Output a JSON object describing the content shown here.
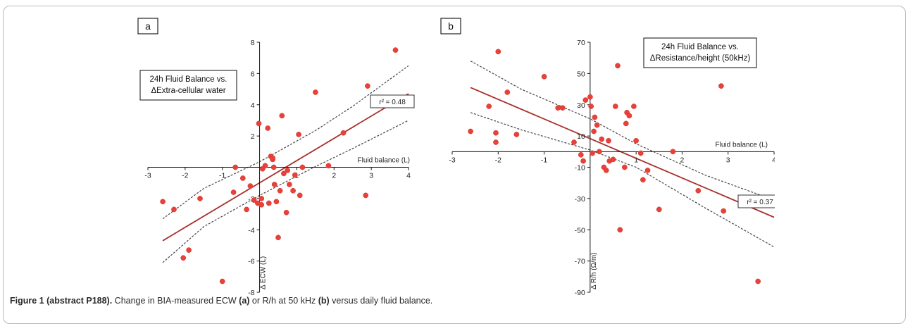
{
  "caption": {
    "lead": "Figure 1 (abstract P188).",
    "text1": " Change in BIA-measured ECW ",
    "tag_a": "(a)",
    "text2": " or R/h at 50 kHz ",
    "tag_b": "(b)",
    "text3": " versus daily fluid balance."
  },
  "chart_data": [
    {
      "type": "scatter",
      "panel_label": "a",
      "title_lines": [
        "24h Fluid Balance vs.",
        "ΔExtra-cellular water"
      ],
      "xlabel": "Fluid balance (L)",
      "ylabel": "Δ ECW (L)",
      "xlim": [
        -3,
        4
      ],
      "ylim": [
        -8,
        8
      ],
      "xticks": [
        -3,
        -2,
        -1,
        0,
        1,
        2,
        3,
        4
      ],
      "yticks": [
        -8,
        -6,
        -4,
        -2,
        0,
        2,
        4,
        6,
        8
      ],
      "r2_label": "r² = 0.48",
      "point_color": "#e8413a",
      "line_color": "#a8302c",
      "points": [
        [
          -2.6,
          -2.2
        ],
        [
          -2.3,
          -2.7
        ],
        [
          -2.05,
          -5.8
        ],
        [
          -1.9,
          -5.3
        ],
        [
          -1.6,
          -2.0
        ],
        [
          -1.0,
          -7.3
        ],
        [
          -0.7,
          -1.6
        ],
        [
          -0.45,
          -0.7
        ],
        [
          -0.35,
          -2.7
        ],
        [
          -0.25,
          -1.2
        ],
        [
          -0.15,
          -2.1
        ],
        [
          -0.05,
          -2.3
        ],
        [
          0.05,
          -2.0
        ],
        [
          0.05,
          -2.4
        ],
        [
          0.08,
          -0.1
        ],
        [
          0.15,
          0.1
        ],
        [
          0.22,
          2.5
        ],
        [
          0.25,
          -2.3
        ],
        [
          0.3,
          0.7
        ],
        [
          0.35,
          0.5
        ],
        [
          0.38,
          0.0
        ],
        [
          0.4,
          -1.1
        ],
        [
          0.45,
          -2.2
        ],
        [
          0.5,
          -4.5
        ],
        [
          0.55,
          -1.5
        ],
        [
          0.6,
          3.3
        ],
        [
          0.65,
          -0.4
        ],
        [
          0.72,
          -2.9
        ],
        [
          0.75,
          -0.2
        ],
        [
          0.8,
          -1.1
        ],
        [
          0.9,
          -1.5
        ],
        [
          0.95,
          -0.5
        ],
        [
          1.05,
          2.1
        ],
        [
          1.08,
          -1.8
        ],
        [
          1.15,
          0.0
        ],
        [
          1.5,
          4.8
        ],
        [
          1.85,
          0.1
        ],
        [
          2.25,
          2.2
        ],
        [
          2.85,
          -1.8
        ],
        [
          2.9,
          5.2
        ],
        [
          3.65,
          7.5
        ],
        [
          -0.65,
          0.0
        ],
        [
          -0.02,
          2.8
        ],
        [
          0.35,
          0.6
        ]
      ],
      "fit": [
        [
          -2.6,
          -4.7
        ],
        [
          4.0,
          4.7
        ]
      ],
      "ci_upper": [
        [
          -2.6,
          -3.3
        ],
        [
          -1.5,
          -1.35
        ],
        [
          0.0,
          0.35
        ],
        [
          1.5,
          2.35
        ],
        [
          2.5,
          3.9
        ],
        [
          4.0,
          6.5
        ]
      ],
      "ci_lower": [
        [
          -2.6,
          -6.1
        ],
        [
          -1.5,
          -3.8
        ],
        [
          0.0,
          -1.8
        ],
        [
          1.5,
          0.05
        ],
        [
          2.5,
          1.2
        ],
        [
          4.0,
          3.0
        ]
      ],
      "grid": false
    },
    {
      "type": "scatter",
      "panel_label": "b",
      "title_lines": [
        "24h Fluid Balance vs.",
        "ΔResistance/height (50kHz)"
      ],
      "xlabel": "Fluid balance (L)",
      "ylabel": "Δ R/h (Ω/m)",
      "xlim": [
        -3,
        4
      ],
      "ylim": [
        -90,
        70
      ],
      "xticks": [
        -3,
        -2,
        -1,
        0,
        1,
        2,
        3,
        4
      ],
      "yticks": [
        -90,
        -70,
        -50,
        -30,
        -10,
        10,
        30,
        50,
        70
      ],
      "r2_label": "r² = 0.37",
      "point_color": "#e8413a",
      "line_color": "#a8302c",
      "points": [
        [
          -2.6,
          13
        ],
        [
          -2.2,
          29
        ],
        [
          -2.05,
          6
        ],
        [
          -2.0,
          64
        ],
        [
          -1.8,
          38
        ],
        [
          -1.6,
          11
        ],
        [
          -1.0,
          48
        ],
        [
          -0.7,
          28
        ],
        [
          -0.35,
          6
        ],
        [
          -0.2,
          -2
        ],
        [
          -0.15,
          -6
        ],
        [
          -0.1,
          33
        ],
        [
          0.0,
          35
        ],
        [
          0.02,
          29
        ],
        [
          0.05,
          -1
        ],
        [
          0.08,
          13
        ],
        [
          0.1,
          22
        ],
        [
          0.15,
          17
        ],
        [
          0.2,
          0
        ],
        [
          0.25,
          8
        ],
        [
          0.3,
          -10
        ],
        [
          0.35,
          -12
        ],
        [
          0.4,
          7
        ],
        [
          0.42,
          -6
        ],
        [
          0.5,
          -5
        ],
        [
          0.55,
          29
        ],
        [
          0.6,
          55
        ],
        [
          0.65,
          -50
        ],
        [
          0.75,
          -10
        ],
        [
          0.78,
          18
        ],
        [
          0.8,
          25
        ],
        [
          0.85,
          23
        ],
        [
          0.95,
          29
        ],
        [
          1.0,
          7
        ],
        [
          1.1,
          -1
        ],
        [
          1.15,
          -18
        ],
        [
          1.25,
          -12
        ],
        [
          1.5,
          -37
        ],
        [
          1.8,
          0
        ],
        [
          2.35,
          -25
        ],
        [
          2.85,
          42
        ],
        [
          2.9,
          -38
        ],
        [
          3.65,
          -83
        ],
        [
          -2.05,
          12
        ],
        [
          -0.6,
          28
        ]
      ],
      "fit": [
        [
          -2.6,
          41
        ],
        [
          4.0,
          -42
        ]
      ],
      "ci_upper": [
        [
          -2.6,
          58
        ],
        [
          -1.5,
          40
        ],
        [
          0.0,
          21
        ],
        [
          1.0,
          5
        ],
        [
          2.5,
          -15
        ],
        [
          4.0,
          -31
        ]
      ],
      "ci_lower": [
        [
          -2.6,
          25
        ],
        [
          -1.5,
          14
        ],
        [
          0.0,
          1
        ],
        [
          1.0,
          -10
        ],
        [
          2.5,
          -36
        ],
        [
          4.0,
          -61
        ]
      ],
      "grid": false
    }
  ]
}
